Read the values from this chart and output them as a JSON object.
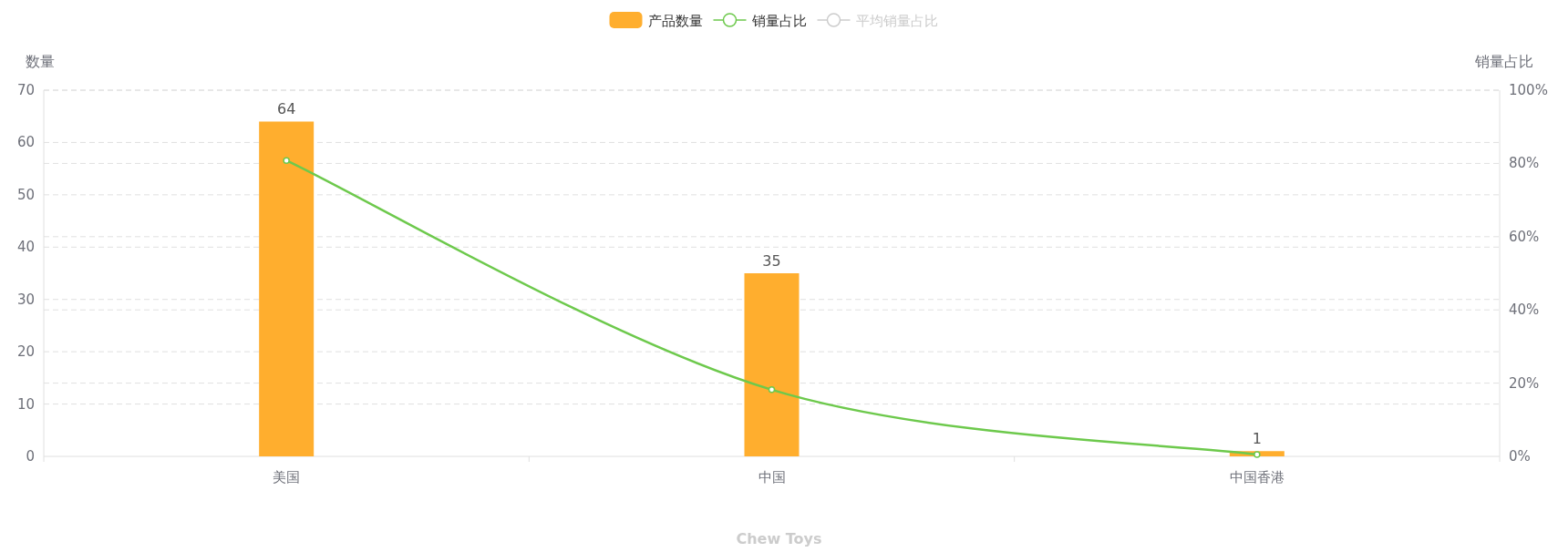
{
  "chart_data": {
    "type": "bar",
    "categories": [
      "美国",
      "中国",
      "中国香港"
    ],
    "ylabel": "数量",
    "y2label": "销量占比",
    "ylim": [
      0,
      70
    ],
    "yticks": [
      0,
      10,
      20,
      30,
      40,
      50,
      60,
      70
    ],
    "y2lim": [
      0,
      100
    ],
    "y2ticks": [
      {
        "value": 0,
        "label": "0%"
      },
      {
        "value": 20,
        "label": "20%"
      },
      {
        "value": 40,
        "label": "40%"
      },
      {
        "value": 60,
        "label": "60%"
      },
      {
        "value": 80,
        "label": "80%"
      },
      {
        "value": 100,
        "label": "100%"
      }
    ],
    "series": [
      {
        "name": "产品数量",
        "color": "#ffae2e",
        "values": [
          64,
          35,
          1
        ],
        "value_labels": [
          "64",
          "35",
          "1"
        ]
      },
      {
        "name": "销量占比",
        "type": "line",
        "axis": "y2",
        "color": "#6dc94c",
        "values": [
          80.8,
          18.2,
          0.5
        ]
      },
      {
        "name": "平均销量占比",
        "type": "line",
        "axis": "y2",
        "color": "#cccccc",
        "values": [
          null,
          null,
          null
        ]
      }
    ],
    "marker": "circle",
    "grid": true,
    "legend": "top",
    "annotations": [
      "Chew Toys"
    ]
  }
}
